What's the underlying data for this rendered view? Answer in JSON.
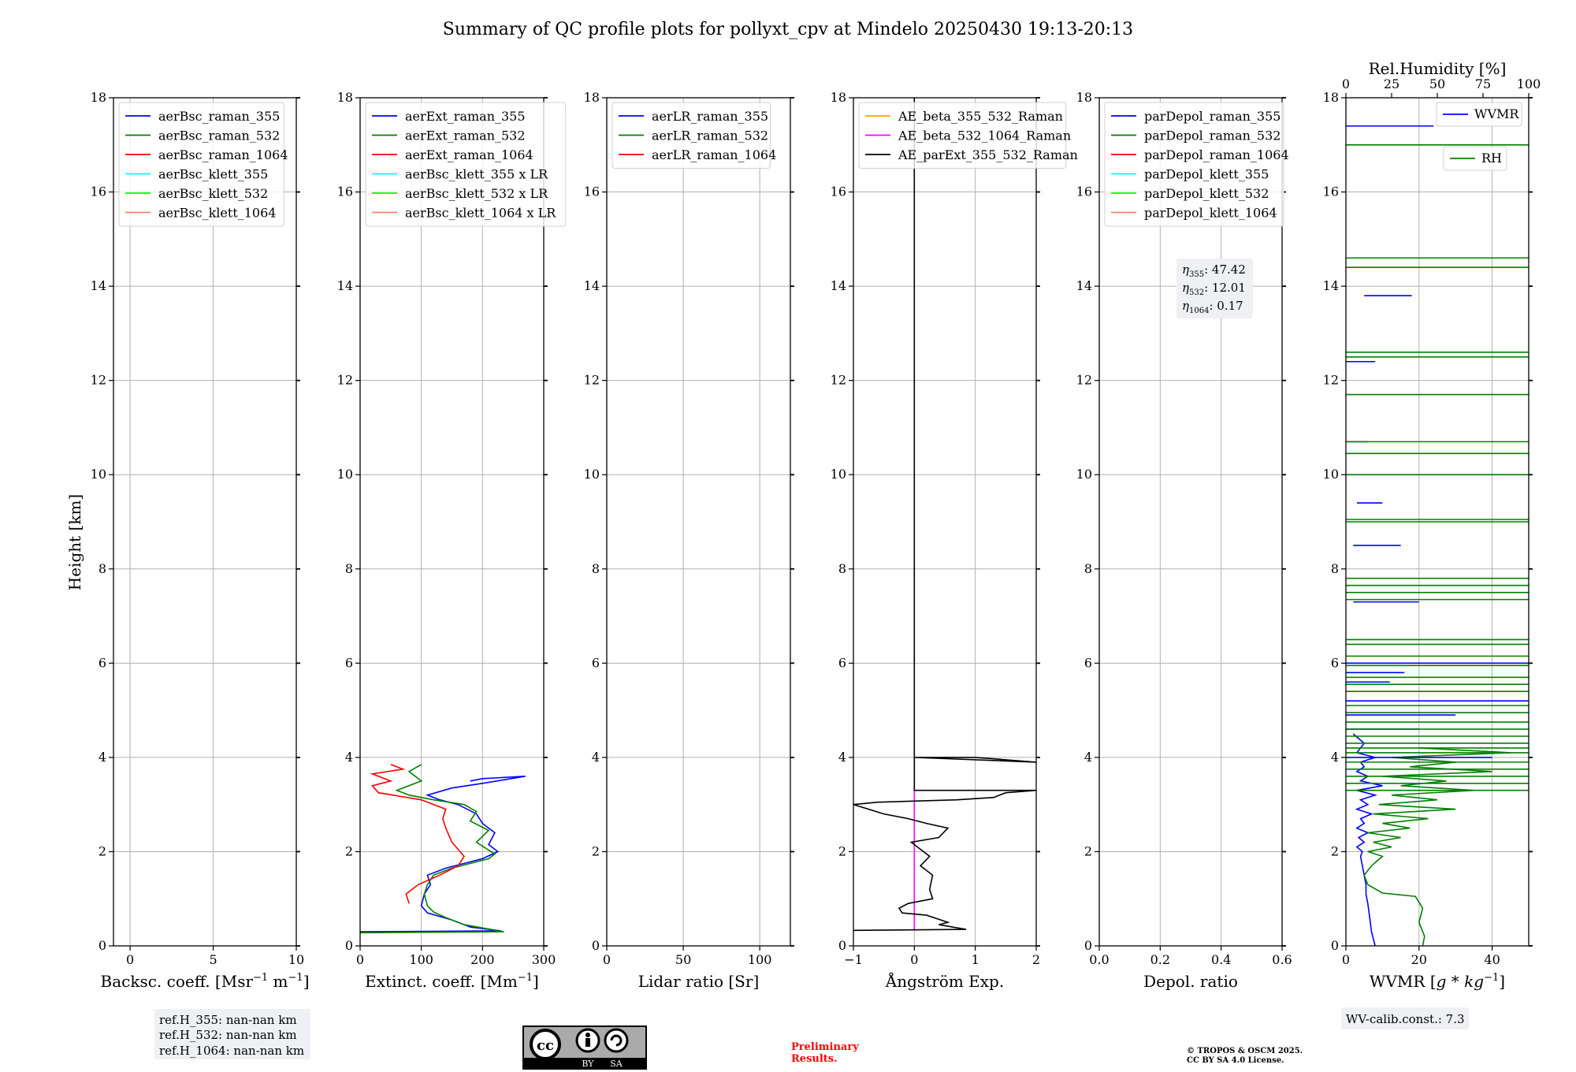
{
  "title": "Summary of QC profile plots for pollyxt_cpv at Mindelo 20250430 19:13-20:13",
  "y_axis_label": "Height [km]",
  "colors": {
    "blue": "#0000ff",
    "green": "#008000",
    "red": "#ff0000",
    "cyan": "#00ffff",
    "lime": "#00ff00",
    "salmon": "#fa8072",
    "orange": "#ffa500",
    "magenta": "#ff00ff",
    "black": "#000000",
    "grid": "#b0b0b0",
    "box_bg": "#eff0f4",
    "prelim": "#ff0000"
  },
  "reference_heights": [
    "ref.H_355: nan-nan km",
    "ref.H_532: nan-nan km",
    "ref.H_1064: nan-nan km"
  ],
  "eta_box": [
    {
      "sub": "355",
      "value": ": 47.42"
    },
    {
      "sub": "532",
      "value": ": 12.01"
    },
    {
      "sub": "1064",
      "value": ": 0.17"
    }
  ],
  "wv_calib": "WV-calib.const.: 7.3",
  "license_badge": {
    "cc": "cc",
    "by": "BY",
    "sa": "SA"
  },
  "preliminary": [
    "Preliminary",
    "Results."
  ],
  "copyright": [
    "© TROPOS & OSCM 2025.",
    "CC BY SA 4.0 License."
  ],
  "chart_data": [
    {
      "type": "line",
      "xlabel": "Backsc. coeff. [Msr$^{-1}$ m$^{-1}$]",
      "xlabel_main": "Backsc. coeff. [Msr",
      "xlabel_sup1": "−1",
      "xlabel_mid": " m",
      "xlabel_sup2": "−1",
      "xlabel_end": "]",
      "xlim": [
        -1,
        10
      ],
      "xticks": [
        0,
        5,
        10
      ],
      "ylim": [
        0,
        18
      ],
      "yticks": [
        0,
        2,
        4,
        6,
        8,
        10,
        12,
        14,
        16,
        18
      ],
      "legend_position": "top-left",
      "legend": [
        {
          "name": "aerBsc_raman_355",
          "color": "#0000ff"
        },
        {
          "name": "aerBsc_raman_532",
          "color": "#008000"
        },
        {
          "name": "aerBsc_raman_1064",
          "color": "#ff0000"
        },
        {
          "name": "aerBsc_klett_355",
          "color": "#00ffff"
        },
        {
          "name": "aerBsc_klett_532",
          "color": "#00ff00"
        },
        {
          "name": "aerBsc_klett_1064",
          "color": "#fa8072"
        }
      ],
      "series": []
    },
    {
      "type": "line",
      "xlabel_main": "Extinct. coeff. [Mm",
      "xlabel_sup1": "−1",
      "xlabel_end": "]",
      "xlim": [
        0,
        300
      ],
      "xticks": [
        0,
        100,
        200,
        300
      ],
      "ylim": [
        0,
        18
      ],
      "yticks": [
        0,
        2,
        4,
        6,
        8,
        10,
        12,
        14,
        16,
        18
      ],
      "legend_position": "top-left",
      "legend": [
        {
          "name": "aerExt_raman_355",
          "color": "#0000ff"
        },
        {
          "name": "aerExt_raman_532",
          "color": "#008000"
        },
        {
          "name": "aerExt_raman_1064",
          "color": "#ff0000"
        },
        {
          "name": "aerBsc_klett_355 x LR",
          "color": "#00ffff"
        },
        {
          "name": "aerBsc_klett_532 x LR",
          "color": "#00ff00"
        },
        {
          "name": "aerBsc_klett_1064 x LR",
          "color": "#fa8072"
        }
      ],
      "series": [
        {
          "name": "aerExt_raman_355",
          "color": "#0000ff",
          "x": [
            0,
            230,
            180,
            150,
            110,
            100,
            105,
            115,
            110,
            140,
            170,
            200,
            225,
            210,
            220,
            200,
            190,
            160,
            130,
            110,
            150,
            200,
            270,
            200,
            180
          ],
          "y": [
            0.3,
            0.32,
            0.4,
            0.55,
            0.7,
            0.85,
            1.1,
            1.3,
            1.5,
            1.65,
            1.75,
            1.85,
            2.0,
            2.15,
            2.4,
            2.6,
            2.8,
            3.0,
            3.1,
            3.2,
            3.35,
            3.45,
            3.6,
            3.55,
            3.5
          ]
        },
        {
          "name": "aerExt_raman_532",
          "color": "#008000",
          "x": [
            0,
            235,
            170,
            140,
            120,
            110,
            105,
            110,
            120,
            150,
            180,
            210,
            220,
            190,
            210,
            180,
            190,
            170,
            120,
            80,
            60,
            100,
            80,
            100
          ],
          "y": [
            0.28,
            0.3,
            0.45,
            0.6,
            0.72,
            0.85,
            1.1,
            1.3,
            1.5,
            1.65,
            1.75,
            1.85,
            1.95,
            2.2,
            2.45,
            2.65,
            2.85,
            3.0,
            3.1,
            3.2,
            3.3,
            3.5,
            3.7,
            3.85
          ]
        },
        {
          "name": "aerExt_raman_1064",
          "color": "#ff0000",
          "x": [
            80,
            75,
            95,
            130,
            160,
            170,
            150,
            140,
            135,
            140,
            100,
            30,
            20,
            50,
            20,
            70,
            50
          ],
          "y": [
            0.9,
            1.1,
            1.3,
            1.5,
            1.7,
            1.9,
            2.2,
            2.5,
            2.7,
            2.9,
            3.1,
            3.25,
            3.4,
            3.5,
            3.65,
            3.75,
            3.85
          ]
        }
      ],
      "overlay_text": [
        "0",
        "18",
        "LR"
      ]
    },
    {
      "type": "line",
      "xlabel_main": "Lidar ratio [Sr]",
      "xlim": [
        0,
        120
      ],
      "xticks": [
        0,
        50,
        100
      ],
      "ylim": [
        0,
        18
      ],
      "yticks": [
        0,
        2,
        4,
        6,
        8,
        10,
        12,
        14,
        16,
        18
      ],
      "legend_position": "top-left",
      "legend": [
        {
          "name": "aerLR_raman_355",
          "color": "#0000ff"
        },
        {
          "name": "aerLR_raman_532",
          "color": "#008000"
        },
        {
          "name": "aerLR_raman_1064",
          "color": "#ff0000"
        }
      ],
      "series": []
    },
    {
      "type": "line",
      "xlabel_main": "Ångström Exp.",
      "xlim": [
        -1,
        2
      ],
      "xticks": [
        -1,
        0,
        1,
        2
      ],
      "xtick_labels": [
        "−1",
        "0",
        "1",
        "2"
      ],
      "ylim": [
        0,
        18
      ],
      "yticks": [
        0,
        2,
        4,
        6,
        8,
        10,
        12,
        14,
        16,
        18
      ],
      "legend_position": "top-left",
      "legend": [
        {
          "name": "AE_beta_355_532_Raman",
          "color": "#ffa500"
        },
        {
          "name": "AE_beta_532_1064_Raman",
          "color": "#ff00ff"
        },
        {
          "name": "AE_parExt_355_532_Raman",
          "color": "#000000"
        }
      ],
      "series": [
        {
          "name": "AE_beta_532_1064_Raman",
          "color": "#ff00ff",
          "x": [
            0,
            0
          ],
          "y": [
            0.35,
            4.0
          ]
        },
        {
          "name": "AE_parExt_355_532_Raman",
          "color": "#000000",
          "x": [
            -1,
            0.85,
            0.4,
            0.55,
            0.2,
            -0.2,
            -0.25,
            -0.1,
            0.3,
            0.25,
            0.3,
            0.1,
            0.25,
            0.1,
            -0.05,
            0.4,
            0.55,
            0.2,
            -0.1,
            -0.5,
            -1,
            -0.6,
            0.7,
            1.3,
            1.5,
            2.0,
            0.0,
            0.0,
            1.0,
            2.0,
            0.0,
            0.0
          ],
          "y": [
            0.33,
            0.35,
            0.45,
            0.5,
            0.65,
            0.7,
            0.8,
            0.9,
            1.0,
            1.2,
            1.5,
            1.7,
            1.9,
            2.05,
            2.2,
            2.3,
            2.5,
            2.6,
            2.7,
            2.8,
            3.0,
            3.05,
            3.1,
            3.15,
            3.25,
            3.3,
            3.3,
            4.0,
            4.0,
            3.9,
            4.0,
            18
          ]
        }
      ]
    },
    {
      "type": "line",
      "xlabel_main": "Depol. ratio",
      "xlim": [
        0,
        0.6
      ],
      "xticks": [
        0,
        0.2,
        0.4,
        0.6
      ],
      "xtick_labels": [
        "0.0",
        "0.2",
        "0.4",
        "0.6"
      ],
      "ylim": [
        0,
        18
      ],
      "yticks": [
        0,
        2,
        4,
        6,
        8,
        10,
        12,
        14,
        16,
        18
      ],
      "legend_position": "top-left",
      "legend": [
        {
          "name": "parDepol_raman_355",
          "color": "#0000ff"
        },
        {
          "name": "parDepol_raman_532",
          "color": "#008000"
        },
        {
          "name": "parDepol_raman_1064",
          "color": "#ff0000"
        },
        {
          "name": "parDepol_klett_355",
          "color": "#00ffff"
        },
        {
          "name": "parDepol_klett_532",
          "color": "#00ff00"
        },
        {
          "name": "parDepol_klett_1064",
          "color": "#fa8072"
        }
      ],
      "series": []
    },
    {
      "type": "line",
      "xlabel_main": "WVMR [",
      "xlabel_math": "g * kg",
      "xlabel_sup1": "−1",
      "xlabel_end": "]",
      "xlim": [
        0,
        50
      ],
      "xticks": [
        0,
        20,
        40
      ],
      "ylim": [
        0,
        18
      ],
      "yticks": [
        0,
        2,
        4,
        6,
        8,
        10,
        12,
        14,
        16,
        18
      ],
      "top_axis": {
        "label": "Rel.Humidity [%]",
        "lim": [
          0,
          100
        ],
        "ticks": [
          0,
          25,
          50,
          75,
          100
        ]
      },
      "legend_position": "top-right",
      "legend": [
        {
          "name": "WVMR",
          "color": "#0000ff"
        },
        {
          "name": "RH",
          "color": "#008000"
        }
      ],
      "series": [
        {
          "name": "WVMR",
          "color": "#0000ff",
          "axis": "bottom",
          "x": [
            8,
            7,
            6.5,
            6,
            5.5,
            5.5,
            5,
            4.5,
            4,
            4.5,
            3,
            5,
            3.5,
            6,
            3,
            5,
            4,
            7,
            3,
            6,
            4,
            8,
            3,
            10,
            4,
            6,
            3,
            5,
            4,
            8,
            3,
            5,
            2
          ],
          "y": [
            0,
            0.3,
            0.6,
            0.9,
            1.1,
            1.3,
            1.5,
            1.7,
            1.9,
            2.0,
            2.1,
            2.2,
            2.3,
            2.4,
            2.5,
            2.6,
            2.7,
            2.8,
            2.9,
            3.0,
            3.1,
            3.2,
            3.3,
            3.4,
            3.5,
            3.6,
            3.7,
            3.8,
            3.9,
            4.0,
            4.1,
            4.3,
            4.5
          ]
        },
        {
          "name": "RH",
          "color": "#008000",
          "axis": "top",
          "x": [
            42,
            43,
            40,
            42,
            38,
            20,
            12,
            10,
            14,
            20,
            12,
            25,
            15,
            30,
            12,
            35,
            20,
            45,
            15,
            60,
            18,
            50,
            25,
            70,
            30,
            55,
            20,
            80,
            35,
            60,
            25,
            90,
            40
          ],
          "y": [
            0,
            0.2,
            0.5,
            0.8,
            1.05,
            1.12,
            1.3,
            1.5,
            1.7,
            1.9,
            2.0,
            2.1,
            2.2,
            2.3,
            2.4,
            2.5,
            2.6,
            2.7,
            2.8,
            2.9,
            3.0,
            3.1,
            3.2,
            3.3,
            3.4,
            3.5,
            3.6,
            3.7,
            3.8,
            3.9,
            4.0,
            4.1,
            4.2
          ]
        }
      ],
      "wvmr_segments": [
        {
          "x1": 0,
          "x2": 24,
          "y": 17.4
        },
        {
          "x1": 5,
          "x2": 18,
          "y": 13.8
        },
        {
          "x1": 3,
          "x2": 10,
          "y": 9.4
        },
        {
          "x1": 2,
          "x2": 15,
          "y": 8.5
        },
        {
          "x1": 2,
          "x2": 20,
          "y": 7.3
        },
        {
          "x1": 0,
          "x2": 50,
          "y": 6.0
        },
        {
          "x1": 0,
          "x2": 50,
          "y": 5.2
        },
        {
          "x1": 0,
          "x2": 30,
          "y": 4.9
        },
        {
          "x1": 0,
          "x2": 40,
          "y": 4.0
        },
        {
          "x1": 0,
          "x2": 20,
          "y": 4.6
        },
        {
          "x1": 0,
          "x2": 8,
          "y": 12.4
        },
        {
          "x1": 0,
          "x2": 6,
          "y": 10.7
        },
        {
          "x1": 0,
          "x2": 9,
          "y": 14.6
        },
        {
          "x1": 0,
          "x2": 12,
          "y": 5.6
        },
        {
          "x1": 0,
          "x2": 16,
          "y": 5.8
        }
      ],
      "rh_segments": [
        {
          "y": 17.0
        },
        {
          "y": 14.6
        },
        {
          "y": 14.4
        },
        {
          "y": 12.6
        },
        {
          "y": 12.5
        },
        {
          "y": 11.7
        },
        {
          "y": 10.7
        },
        {
          "y": 10.45
        },
        {
          "y": 10.0
        },
        {
          "y": 9.0
        },
        {
          "y": 9.05
        },
        {
          "y": 7.8
        },
        {
          "y": 7.65
        },
        {
          "y": 7.5
        },
        {
          "y": 7.35
        },
        {
          "y": 6.5
        },
        {
          "y": 6.4
        },
        {
          "y": 6.15
        },
        {
          "y": 5.95
        },
        {
          "y": 5.7
        },
        {
          "y": 5.55
        },
        {
          "y": 5.4
        },
        {
          "y": 5.1
        },
        {
          "y": 4.95
        },
        {
          "y": 4.75
        },
        {
          "y": 4.6
        },
        {
          "y": 4.45
        },
        {
          "y": 4.3
        },
        {
          "y": 4.2
        },
        {
          "y": 4.1
        },
        {
          "y": 3.9
        },
        {
          "y": 3.75
        },
        {
          "y": 3.6
        },
        {
          "y": 3.45
        },
        {
          "y": 3.3
        }
      ]
    }
  ]
}
